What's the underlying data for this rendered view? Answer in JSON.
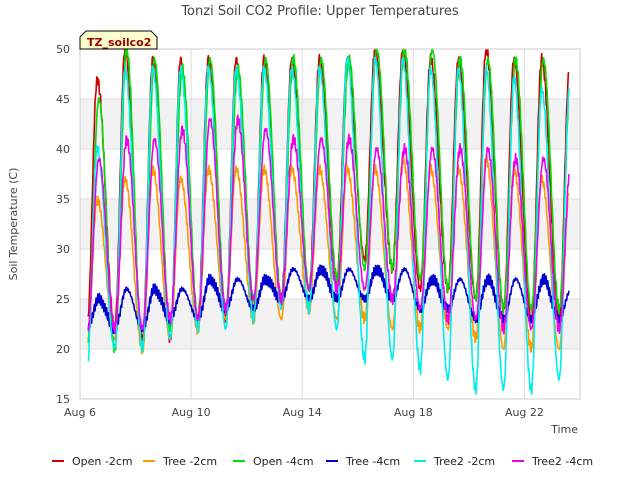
{
  "chart_data": {
    "type": "line",
    "title": "Tonzi Soil CO2 Profile: Upper Temperatures",
    "xlabel": "Time",
    "ylabel": "Soil Temperature (C)",
    "ylim": [
      15,
      50
    ],
    "xlim": [
      6,
      24
    ],
    "yticks": [
      "15",
      "20",
      "25",
      "30",
      "35",
      "40",
      "45",
      "50"
    ],
    "xticks": [
      {
        "value": 6,
        "label": "Aug 6"
      },
      {
        "value": 10,
        "label": "Aug 10"
      },
      {
        "value": 14,
        "label": "Aug 14"
      },
      {
        "value": 18,
        "label": "Aug 18"
      },
      {
        "value": 22,
        "label": "Aug 22"
      }
    ],
    "grid": true,
    "banded_background": true,
    "annotation": "TZ_soilco2",
    "legend_position": "bottom",
    "series": [
      {
        "name": "Open -2cm",
        "color": "#cc0000",
        "daily_max": [
          47,
          50,
          49,
          49,
          49,
          49,
          49,
          49,
          49,
          49,
          50,
          50,
          49,
          49,
          50,
          49,
          49,
          48
        ],
        "daily_min": [
          22,
          22,
          21,
          21,
          23,
          23,
          24,
          25,
          26,
          27,
          29,
          28,
          26,
          26,
          25,
          24,
          23,
          23
        ]
      },
      {
        "name": "Tree -2cm",
        "color": "#ff9900",
        "daily_max": [
          35,
          37,
          38,
          37,
          38,
          38,
          38,
          38,
          38,
          38,
          38,
          39,
          38,
          38,
          39,
          38,
          37,
          36
        ],
        "daily_min": [
          20,
          21,
          20,
          21,
          22,
          23,
          23,
          23,
          24,
          23,
          23,
          22,
          22,
          22,
          21,
          20,
          20,
          20
        ]
      },
      {
        "name": "Open -4cm",
        "color": "#00dd00",
        "daily_max": [
          45,
          50,
          49,
          48,
          49,
          48,
          49,
          49,
          49,
          49,
          50,
          50,
          50,
          49,
          49,
          49,
          49,
          48
        ],
        "daily_min": [
          20,
          20,
          20,
          22,
          23,
          24,
          25,
          25,
          26,
          27,
          28,
          28,
          27,
          26,
          25,
          24,
          24,
          24
        ]
      },
      {
        "name": "Tree -4cm",
        "color": "#0000cc",
        "daily_max": [
          25,
          26,
          26,
          26,
          27,
          27,
          27,
          28,
          28,
          28,
          28,
          28,
          27,
          27,
          27,
          27,
          27,
          26
        ],
        "daily_min": [
          22,
          22,
          22,
          23,
          23,
          24,
          24,
          25,
          25,
          25,
          25,
          25,
          24,
          24,
          23,
          23,
          23,
          23
        ]
      },
      {
        "name": "Tree2 -2cm",
        "color": "#00eeee",
        "daily_max": [
          40,
          48,
          48,
          48,
          48,
          48,
          48,
          48,
          48,
          49,
          49,
          49,
          48,
          48,
          48,
          47,
          46,
          46
        ],
        "daily_min": [
          18,
          20,
          20,
          21,
          22,
          22,
          23,
          24,
          24,
          22,
          19,
          19,
          18,
          17,
          16,
          16,
          16,
          17
        ]
      },
      {
        "name": "Tree2 -4cm",
        "color": "#ee00ee",
        "daily_max": [
          39,
          41,
          41,
          42,
          43,
          43,
          42,
          41,
          41,
          41,
          40,
          40,
          40,
          40,
          40,
          39,
          39,
          39
        ],
        "daily_min": [
          21,
          22,
          22,
          23,
          23,
          24,
          25,
          25,
          26,
          26,
          26,
          25,
          24,
          23,
          23,
          22,
          22,
          22
        ]
      }
    ]
  }
}
